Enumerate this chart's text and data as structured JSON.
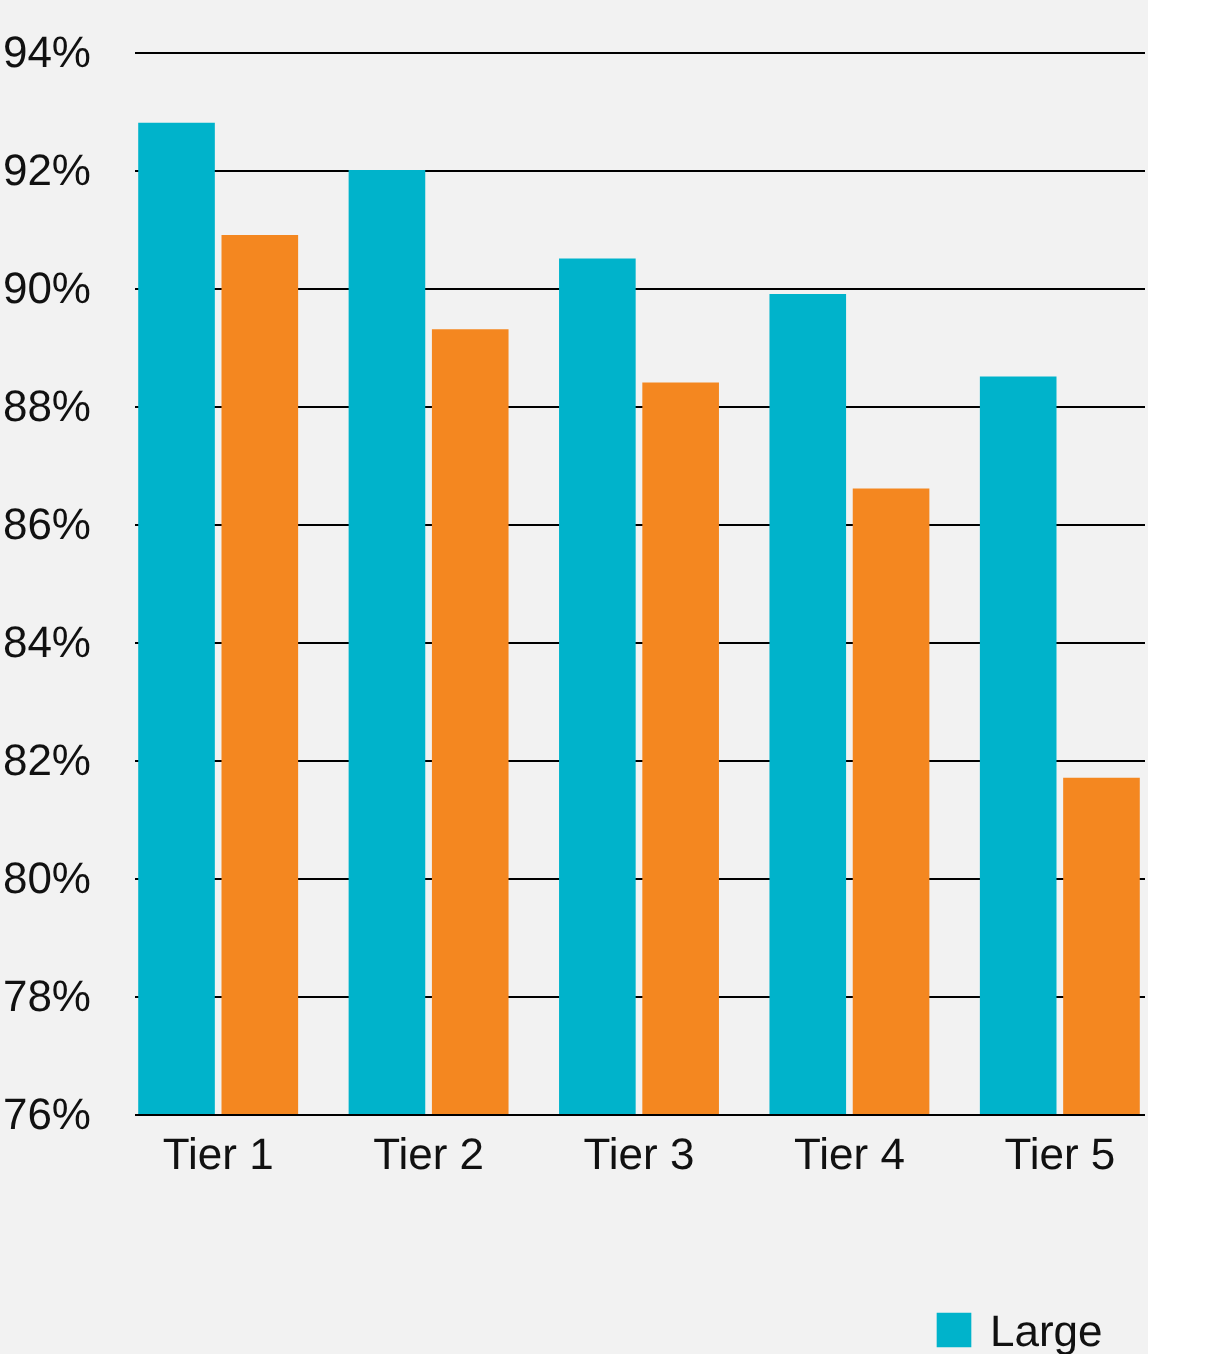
{
  "chart_data": {
    "type": "bar",
    "categories": [
      "Tier 1",
      "Tier 2",
      "Tier 3",
      "Tier 4",
      "Tier 5"
    ],
    "series": [
      {
        "name": "Large",
        "color": "#00b3cb",
        "values": [
          92.8,
          92.0,
          90.5,
          89.9,
          88.5
        ]
      },
      {
        "color": "#f48720",
        "values": [
          90.9,
          89.3,
          88.4,
          86.6,
          81.7
        ]
      }
    ],
    "ylim": [
      76,
      94
    ],
    "yticks": [
      {
        "value": 76,
        "label": "76%"
      },
      {
        "value": 78,
        "label": "78%"
      },
      {
        "value": 80,
        "label": "80%"
      },
      {
        "value": 82,
        "label": "82%"
      },
      {
        "value": 84,
        "label": "84%"
      },
      {
        "value": 86,
        "label": "86%"
      },
      {
        "value": 88,
        "label": "88%"
      },
      {
        "value": 90,
        "label": "90%"
      },
      {
        "value": 92,
        "label": "92%"
      },
      {
        "value": 94,
        "label": "94%"
      }
    ],
    "grid": "y",
    "legend": "bottom right"
  }
}
